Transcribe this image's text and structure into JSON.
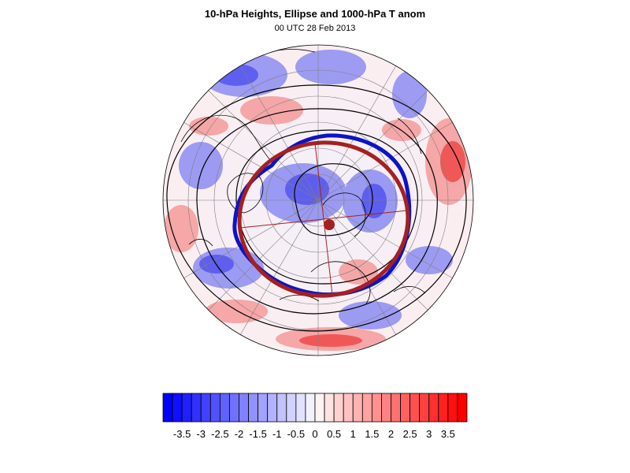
{
  "title": "10-hPa Heights, Ellipse and 1000-hPa T anom",
  "subtitle": "00 UTC 28 Feb 2013",
  "colorbar": {
    "tick_labels": [
      "-3.5",
      "-3",
      "-2.5",
      "-2",
      "-1.5",
      "-1",
      "-0.5",
      "0",
      "0.5",
      "1",
      "1.5",
      "2",
      "2.5",
      "3",
      "3.5"
    ],
    "min": -4,
    "max": 4,
    "interval": 0.25,
    "colors": {
      "cold": "#0000ff",
      "neutral": "#ffffff",
      "warm": "#ff0000"
    }
  },
  "map": {
    "projection": "north polar stereographic",
    "overlays": {
      "height_contours_color": "#000000",
      "vortex_edge_color": "#0a14c8",
      "ellipse_color": "#a52020",
      "vortex_center_color": "#a52020"
    }
  }
}
